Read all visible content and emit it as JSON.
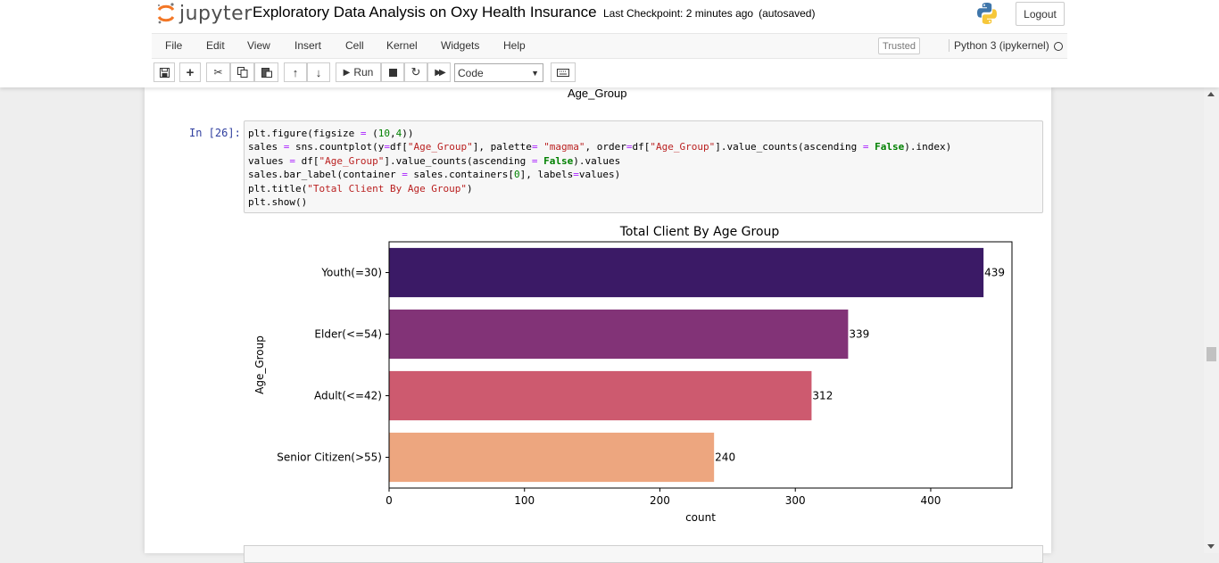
{
  "app": {
    "logo_text": "jupyter",
    "notebook_title": "Exploratory Data Analysis on Oxy Health Insurance",
    "checkpoint": "Last Checkpoint: 2 minutes ago",
    "autosaved": "(autosaved)",
    "logout_label": "Logout"
  },
  "menu": {
    "items": [
      "File",
      "Edit",
      "View",
      "Insert",
      "Cell",
      "Kernel",
      "Widgets",
      "Help"
    ],
    "trusted_label": "Trusted",
    "kernel_name": "Python 3 (ipykernel)"
  },
  "toolbar": {
    "run_label": "Run",
    "cell_type": "Code",
    "icons": [
      "save-icon",
      "plus-icon",
      "cut-icon",
      "copy-icon",
      "paste-icon",
      "arrow-up-icon",
      "arrow-down-icon",
      "play-icon",
      "stop-icon",
      "restart-icon",
      "fast-forward-icon",
      "keyboard-icon"
    ]
  },
  "previous_output": {
    "text": "Age_Group"
  },
  "cell": {
    "prompt": "In [26]:",
    "code_lines": [
      "plt.figure(figsize = (10,4))",
      "sales = sns.countplot(y=df[\"Age_Group\"], palette= \"magma\", order=df[\"Age_Group\"].value_counts(ascending = False).index)",
      "values = df[\"Age_Group\"].value_counts(ascending = False).values",
      "sales.bar_label(container = sales.containers[0], labels=values)",
      "plt.title(\"Total Client By Age Group\")",
      "plt.show()"
    ]
  },
  "chart_data": {
    "type": "bar",
    "orientation": "horizontal",
    "title": "Total Client By Age Group",
    "xlabel": "count",
    "ylabel": "Age_Group",
    "categories": [
      "Youth(=30)",
      "Elder(<=54)",
      "Adult(<=42)",
      "Senior Citizen(>55)"
    ],
    "values": [
      439,
      339,
      312,
      240
    ],
    "data_labels": [
      "439",
      "339",
      "312",
      "240"
    ],
    "colors": [
      "#3b1a66",
      "#823377",
      "#cd5a6f",
      "#eda67f"
    ],
    "xlim": [
      0,
      460
    ],
    "xticks": [
      0,
      100,
      200,
      300,
      400
    ],
    "grid": false
  }
}
